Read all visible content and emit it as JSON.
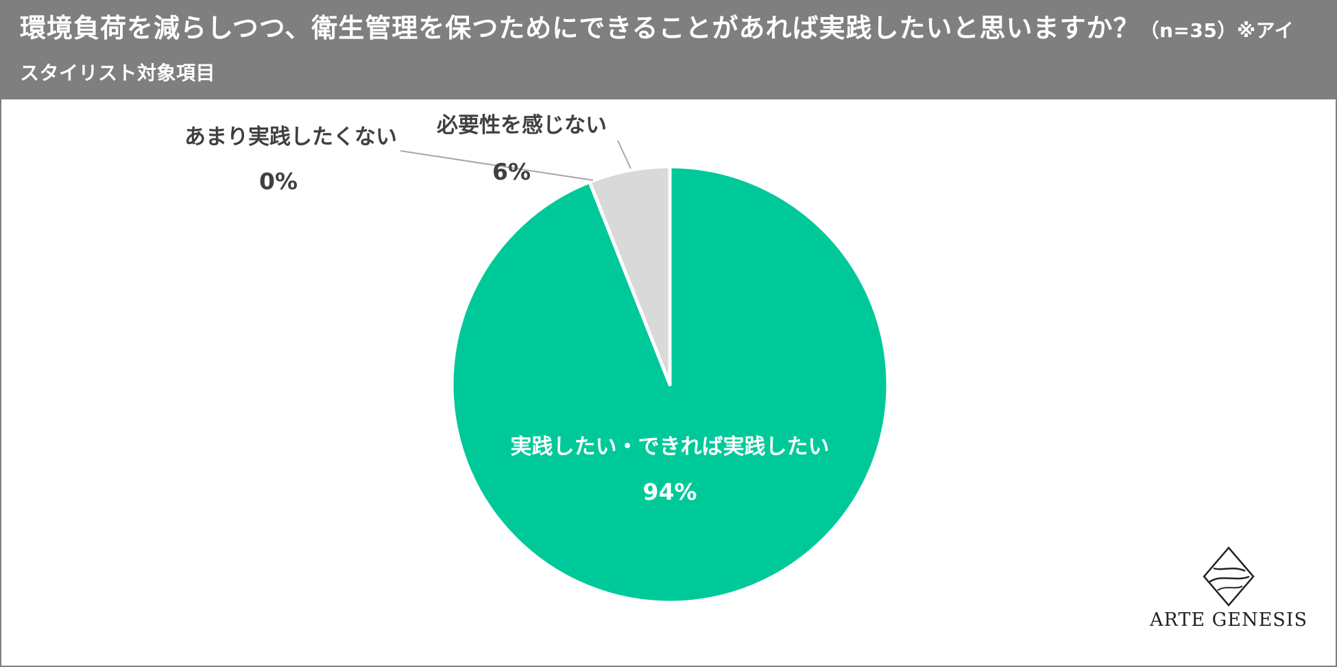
{
  "header": {
    "title": "環境負荷を減らしつつ、衛生管理を保つためにできることがあれば実践したいと思いますか？",
    "subtitle": "（n=35）※アイスタイリスト対象項目"
  },
  "colors": {
    "header_bg": "#7f7f7f",
    "primary_slice": "#00c999",
    "secondary_slice": "#d9d9d9",
    "label_dark": "#404040"
  },
  "chart_data": {
    "type": "pie",
    "title": "環境負荷を減らしつつ、衛生管理を保つためにできることがあれば実践したいと思いますか？",
    "subtitle": "（n=35）※アイスタイリスト対象項目",
    "start": "12 o'clock, clockwise",
    "slices": [
      {
        "label": "実践したい・できれば実践したい",
        "value": 94,
        "value_label": "94%",
        "color": "#00c999"
      },
      {
        "label": "あまり実践したくない",
        "value": 0,
        "value_label": "0%",
        "color": "#a6a6a6"
      },
      {
        "label": "必要性を感じない",
        "value": 6,
        "value_label": "6%",
        "color": "#d9d9d9"
      }
    ]
  },
  "logo": {
    "text": "ARTE GENESIS",
    "icon": "diamond-wave-icon"
  }
}
